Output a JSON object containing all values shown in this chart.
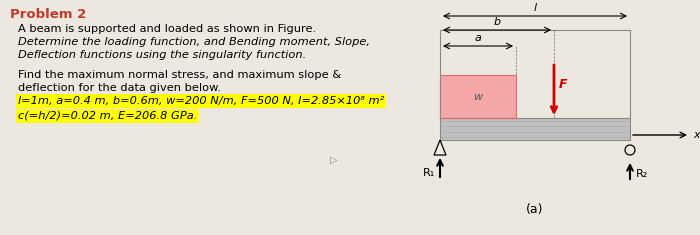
{
  "bg_color": "#ede8df",
  "title": "Problem 2",
  "title_color": "#c0392b",
  "title_fontsize": 9.5,
  "line0": "A beam is supported and loaded as shown in Figure.",
  "line1": "Determine the loading function, and Bending moment, Slope,",
  "line2": "Deflection functions using the singularity function.",
  "line3": "Find the maximum normal stress, and maximum slope &",
  "line4": "deflection for the data given below.",
  "line5": "l=1m, a=0.4 m, b=0.6m, w=200 N/m, F=500 N, I=2.85×10⁸ m²",
  "line6": "c(=h/2)=0.02 m, E=206.8 GPa.",
  "text_fontsize": 8.2,
  "highlight_color": "#ffff00",
  "beam_color": "#c0c0c0",
  "load_color": "#f08080",
  "load_facecolor": "#f5a0a0",
  "red_color": "#cc0000",
  "black": "#000000",
  "gray": "#909090"
}
